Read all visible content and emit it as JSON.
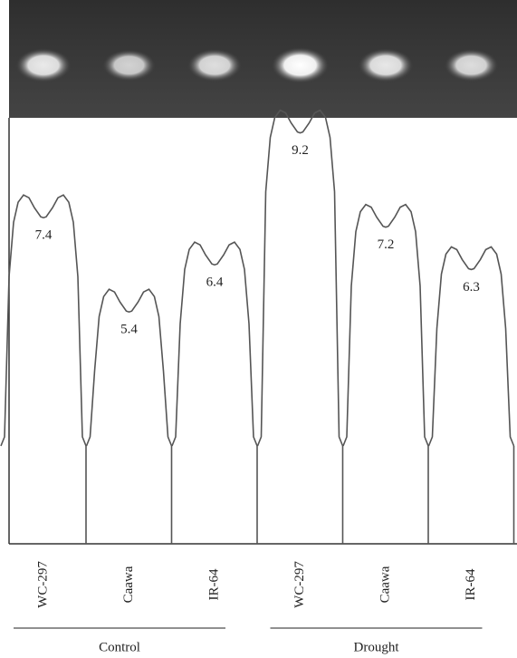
{
  "chart_data": {
    "type": "densitometry",
    "categories": [
      "WC-297",
      "Caawa",
      "IR-64",
      "WC-297",
      "Caawa",
      "IR-64"
    ],
    "values": [
      7.4,
      5.4,
      6.4,
      9.2,
      7.2,
      6.3
    ],
    "groups": [
      "Control",
      "Drought"
    ],
    "color": "#555555"
  }
}
